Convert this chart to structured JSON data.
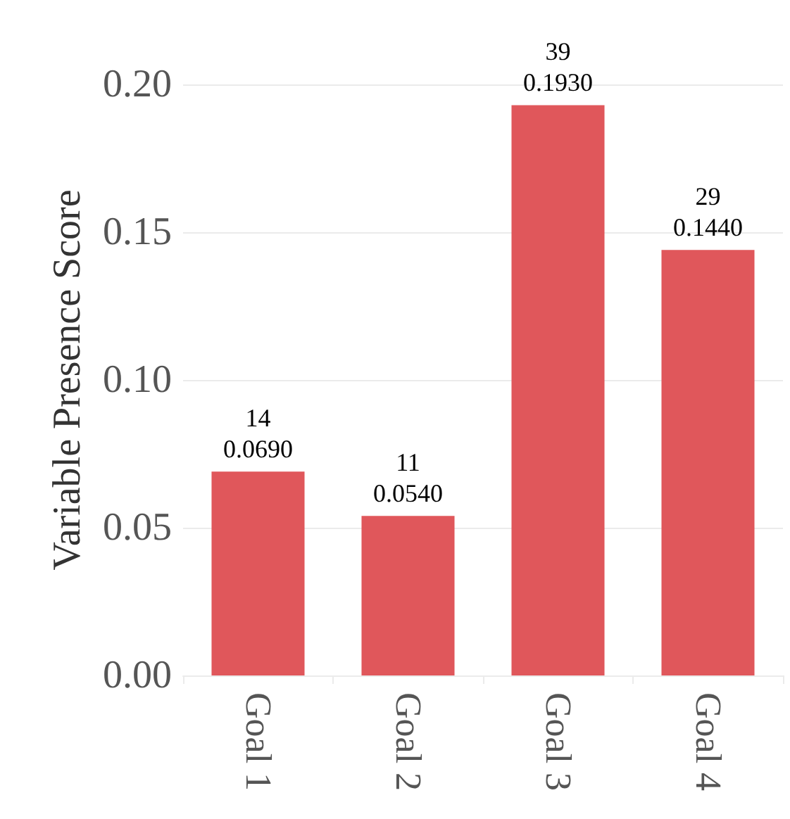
{
  "chart_data": {
    "type": "bar",
    "ylabel": "Variable Presence Score",
    "categories": [
      "Goal 1",
      "Goal 2",
      "Goal 3",
      "Goal 4"
    ],
    "values": [
      0.069,
      0.054,
      0.193,
      0.144
    ],
    "value_labels": [
      "14\n0.0690",
      "11\n0.0540",
      "39\n0.1930",
      "29\n0.1440"
    ],
    "color": "#e0575b",
    "ylim": [
      0,
      0.2
    ],
    "yticks": [
      {
        "value": 0,
        "label": "0.00"
      },
      0.05,
      {
        "value": 0.1,
        "label": "0.10"
      },
      0.15,
      {
        "value": 0.2,
        "label": "0.20"
      }
    ],
    "grid": "y"
  }
}
